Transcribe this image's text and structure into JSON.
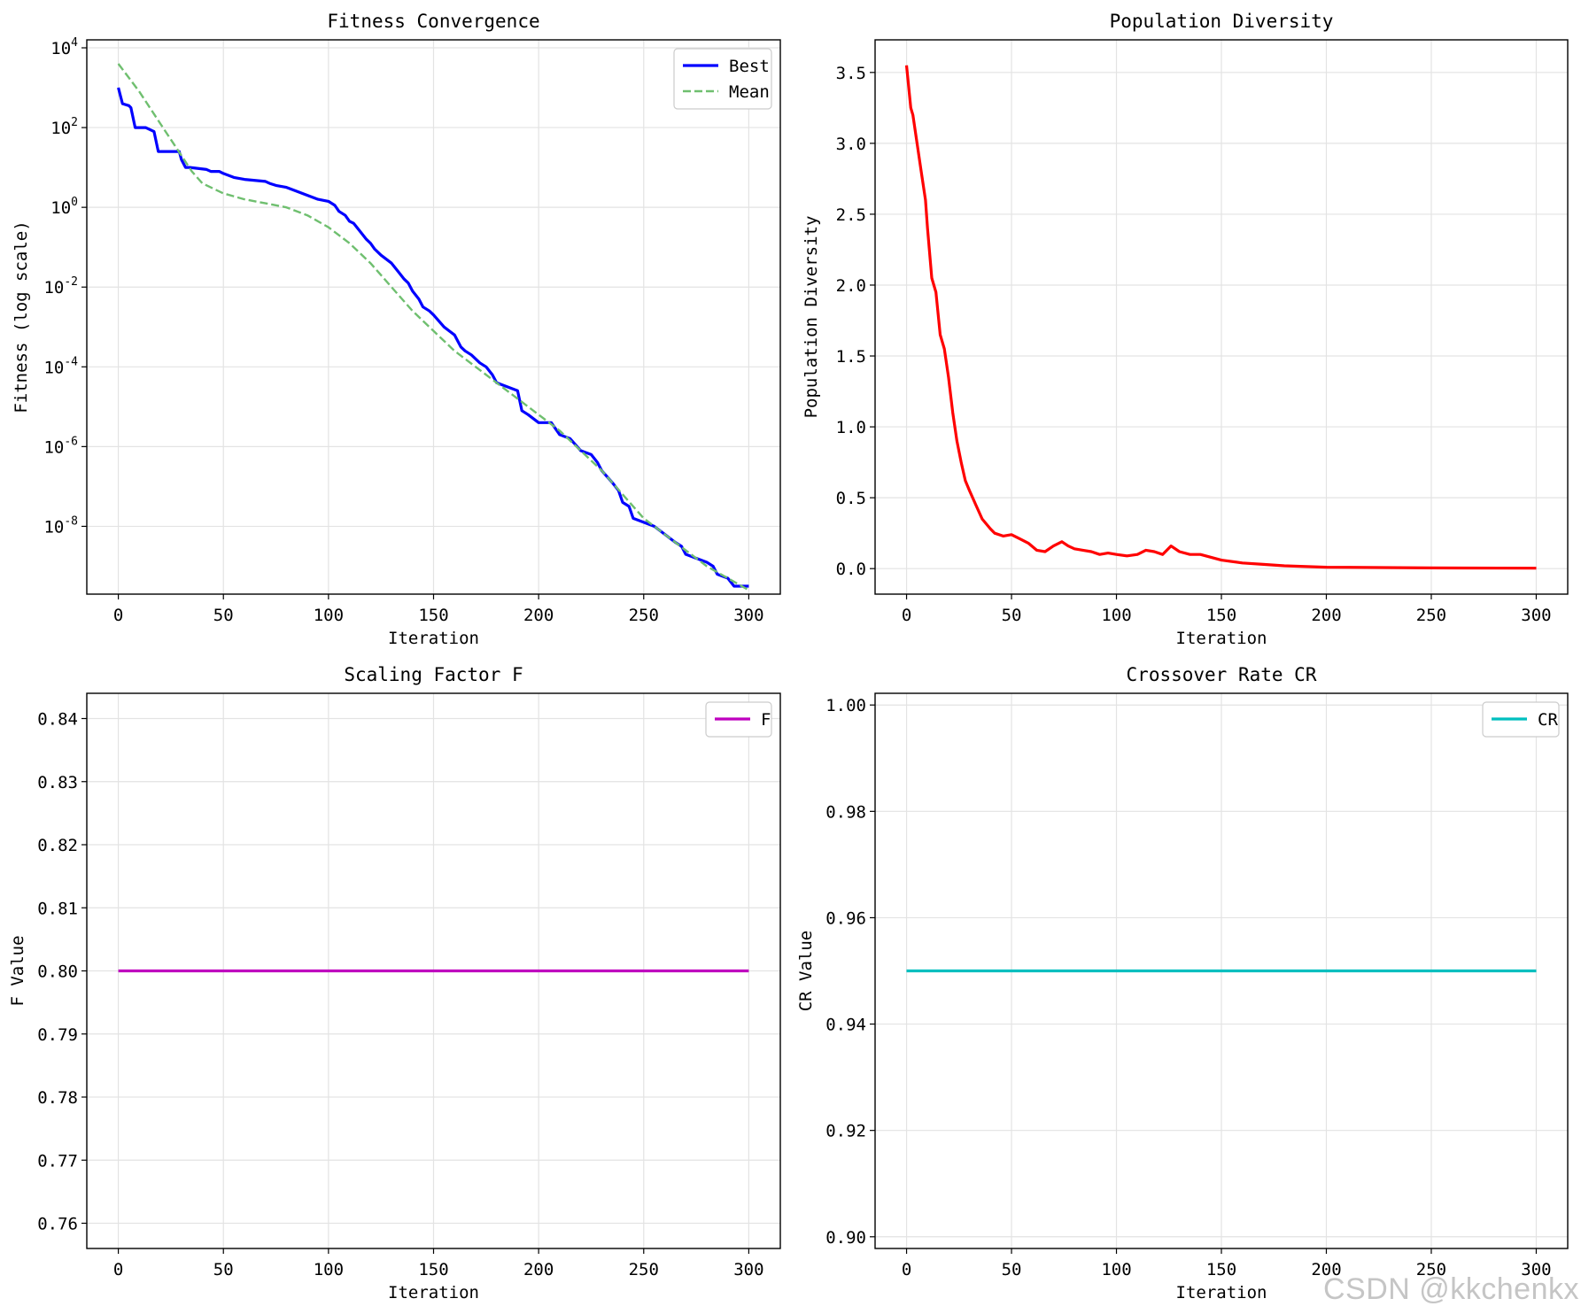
{
  "watermark": "CSDN @kkchenkx",
  "chart_data": [
    {
      "type": "line",
      "id": "fitness",
      "title": "Fitness Convergence",
      "xlabel": "Iteration",
      "ylabel": "Fitness (log scale)",
      "yscale": "log",
      "xlim": [
        -15,
        315
      ],
      "xticks": [
        0,
        50,
        100,
        150,
        200,
        250,
        300
      ],
      "ylim_log10": [
        -9.7,
        4.2
      ],
      "yticks_log10": [
        4,
        2,
        0,
        -2,
        -4,
        -6,
        -8
      ],
      "ytick_labels": [
        "10^4",
        "10^2",
        "10^0",
        "10^-2",
        "10^-4",
        "10^-6",
        "10^-8"
      ],
      "grid": true,
      "legend": {
        "position": "top-right",
        "entries": [
          "Best",
          "Mean"
        ]
      },
      "series": [
        {
          "name": "Best",
          "color": "#0000ff",
          "style": "solid",
          "x": [
            0,
            2,
            5,
            6,
            8,
            11,
            13,
            17,
            19,
            20,
            29,
            30,
            32,
            34,
            42,
            44,
            48,
            50,
            55,
            60,
            70,
            72,
            75,
            80,
            85,
            90,
            95,
            100,
            103,
            105,
            108,
            110,
            112,
            115,
            118,
            120,
            122,
            125,
            130,
            133,
            136,
            138,
            140,
            143,
            145,
            148,
            150,
            155,
            160,
            163,
            165,
            168,
            172,
            175,
            178,
            180,
            185,
            190,
            192,
            195,
            200,
            203,
            206,
            210,
            215,
            220,
            225,
            228,
            230,
            235,
            238,
            240,
            243,
            245,
            250,
            255,
            260,
            265,
            268,
            270,
            275,
            280,
            283,
            285,
            290,
            293,
            295,
            298,
            300
          ],
          "y": [
            3.0,
            2.6,
            2.55,
            2.5,
            2.0,
            2.0,
            2.0,
            1.9,
            1.4,
            1.4,
            1.4,
            1.2,
            1.0,
            1.0,
            0.95,
            0.9,
            0.9,
            0.85,
            0.75,
            0.7,
            0.65,
            0.6,
            0.55,
            0.5,
            0.4,
            0.3,
            0.2,
            0.15,
            0.05,
            -0.1,
            -0.2,
            -0.35,
            -0.4,
            -0.6,
            -0.8,
            -0.9,
            -1.05,
            -1.2,
            -1.4,
            -1.6,
            -1.8,
            -1.9,
            -2.1,
            -2.3,
            -2.5,
            -2.6,
            -2.7,
            -3.0,
            -3.2,
            -3.5,
            -3.6,
            -3.7,
            -3.9,
            -4.0,
            -4.2,
            -4.4,
            -4.5,
            -4.6,
            -5.1,
            -5.2,
            -5.4,
            -5.4,
            -5.4,
            -5.7,
            -5.8,
            -6.1,
            -6.2,
            -6.4,
            -6.6,
            -6.9,
            -7.1,
            -7.4,
            -7.5,
            -7.8,
            -7.9,
            -8.0,
            -8.2,
            -8.4,
            -8.5,
            -8.7,
            -8.8,
            -8.9,
            -9.0,
            -9.2,
            -9.3,
            -9.5,
            -9.5,
            -9.5,
            -9.5
          ]
        },
        {
          "name": "Mean",
          "color": "#6fbf6f",
          "style": "dashed",
          "x": [
            0,
            10,
            20,
            30,
            35,
            40,
            50,
            60,
            70,
            80,
            90,
            100,
            110,
            120,
            130,
            140,
            150,
            160,
            170,
            180,
            190,
            200,
            210,
            220,
            230,
            240,
            250,
            260,
            270,
            280,
            290,
            300
          ],
          "y": [
            3.6,
            2.9,
            2.1,
            1.3,
            0.9,
            0.6,
            0.35,
            0.2,
            0.1,
            0.0,
            -0.2,
            -0.5,
            -0.9,
            -1.4,
            -2.0,
            -2.6,
            -3.1,
            -3.6,
            -4.0,
            -4.4,
            -4.8,
            -5.2,
            -5.6,
            -6.1,
            -6.6,
            -7.2,
            -7.8,
            -8.2,
            -8.6,
            -9.0,
            -9.3,
            -9.6
          ]
        }
      ]
    },
    {
      "type": "line",
      "id": "diversity",
      "title": "Population Diversity",
      "xlabel": "Iteration",
      "ylabel": "Population Diversity",
      "xlim": [
        -15,
        315
      ],
      "xticks": [
        0,
        50,
        100,
        150,
        200,
        250,
        300
      ],
      "ylim": [
        -0.18,
        3.73
      ],
      "yticks": [
        0.0,
        0.5,
        1.0,
        1.5,
        2.0,
        2.5,
        3.0,
        3.5
      ],
      "ytick_labels": [
        "0.0",
        "0.5",
        "1.0",
        "1.5",
        "2.0",
        "2.5",
        "3.0",
        "3.5"
      ],
      "grid": true,
      "series": [
        {
          "name": "Diversity",
          "color": "#ff0000",
          "style": "solid",
          "x": [
            0,
            2,
            3,
            5,
            7,
            9,
            10,
            12,
            14,
            16,
            18,
            20,
            22,
            24,
            26,
            28,
            30,
            33,
            36,
            40,
            42,
            46,
            50,
            54,
            58,
            62,
            66,
            70,
            74,
            77,
            80,
            84,
            88,
            92,
            96,
            100,
            105,
            110,
            114,
            118,
            122,
            126,
            130,
            135,
            140,
            150,
            160,
            170,
            180,
            200,
            250,
            300
          ],
          "y": [
            3.55,
            3.25,
            3.2,
            3.0,
            2.8,
            2.6,
            2.4,
            2.05,
            1.95,
            1.65,
            1.55,
            1.35,
            1.1,
            0.9,
            0.75,
            0.62,
            0.55,
            0.45,
            0.35,
            0.28,
            0.25,
            0.23,
            0.24,
            0.21,
            0.18,
            0.13,
            0.12,
            0.16,
            0.19,
            0.16,
            0.14,
            0.13,
            0.12,
            0.1,
            0.11,
            0.1,
            0.09,
            0.1,
            0.13,
            0.12,
            0.1,
            0.16,
            0.12,
            0.1,
            0.1,
            0.06,
            0.04,
            0.03,
            0.02,
            0.01,
            0.005,
            0.003
          ]
        }
      ]
    },
    {
      "type": "line",
      "id": "scaling",
      "title": "Scaling Factor F",
      "xlabel": "Iteration",
      "ylabel": "F Value",
      "xlim": [
        -15,
        315
      ],
      "xticks": [
        0,
        50,
        100,
        150,
        200,
        250,
        300
      ],
      "ylim": [
        0.756,
        0.844
      ],
      "yticks": [
        0.76,
        0.77,
        0.78,
        0.79,
        0.8,
        0.81,
        0.82,
        0.83,
        0.84
      ],
      "ytick_labels": [
        "0.76",
        "0.77",
        "0.78",
        "0.79",
        "0.80",
        "0.81",
        "0.82",
        "0.83",
        "0.84"
      ],
      "grid": true,
      "legend": {
        "position": "top-right",
        "entries": [
          "F"
        ]
      },
      "series": [
        {
          "name": "F",
          "color": "#bf00bf",
          "style": "solid",
          "x": [
            0,
            300
          ],
          "y": [
            0.8,
            0.8
          ]
        }
      ]
    },
    {
      "type": "line",
      "id": "crossover",
      "title": "Crossover Rate CR",
      "xlabel": "Iteration",
      "ylabel": "CR Value",
      "xlim": [
        -15,
        315
      ],
      "xticks": [
        0,
        50,
        100,
        150,
        200,
        250,
        300
      ],
      "ylim": [
        0.8978,
        1.0022
      ],
      "yticks": [
        0.9,
        0.92,
        0.94,
        0.96,
        0.98,
        1.0
      ],
      "ytick_labels": [
        "0.90",
        "0.92",
        "0.94",
        "0.96",
        "0.98",
        "1.00"
      ],
      "grid": true,
      "legend": {
        "position": "top-right",
        "entries": [
          "CR"
        ]
      },
      "series": [
        {
          "name": "CR",
          "color": "#00bfbf",
          "style": "solid",
          "x": [
            0,
            300
          ],
          "y": [
            0.95,
            0.95
          ]
        }
      ]
    }
  ]
}
